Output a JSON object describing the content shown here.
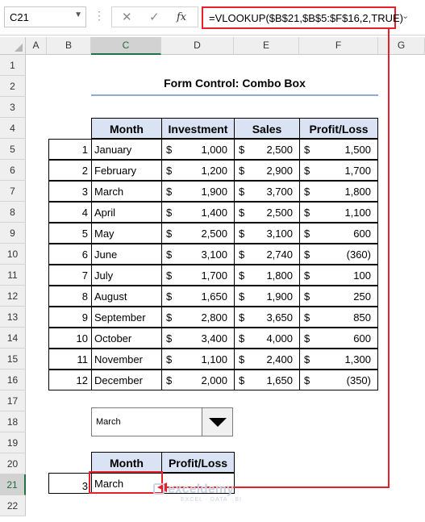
{
  "formula_bar": {
    "name_box": "C21",
    "cancel_icon": "✕",
    "enter_icon": "✓",
    "function_icon": "fx",
    "formula": "=VLOOKUP($B$21,$B$5:$F$16,2,TRUE)"
  },
  "columns": [
    "A",
    "B",
    "C",
    "D",
    "E",
    "F",
    "G"
  ],
  "rows": [
    "1",
    "2",
    "3",
    "4",
    "5",
    "6",
    "7",
    "8",
    "9",
    "10",
    "11",
    "12",
    "13",
    "14",
    "15",
    "16",
    "17",
    "18",
    "19",
    "20",
    "21",
    "22"
  ],
  "title": "Form Control: Combo Box",
  "table": {
    "headers": [
      "Month",
      "Investment",
      "Sales",
      "Profit/Loss"
    ],
    "currency": "$",
    "rows": [
      {
        "n": "1",
        "month": "January",
        "investment": "1,000",
        "sales": "2,500",
        "profit": "1,500"
      },
      {
        "n": "2",
        "month": "February",
        "investment": "1,200",
        "sales": "2,900",
        "profit": "1,700"
      },
      {
        "n": "3",
        "month": "March",
        "investment": "1,900",
        "sales": "3,700",
        "profit": "1,800"
      },
      {
        "n": "4",
        "month": "April",
        "investment": "1,400",
        "sales": "2,500",
        "profit": "1,100"
      },
      {
        "n": "5",
        "month": "May",
        "investment": "2,500",
        "sales": "3,100",
        "profit": "600"
      },
      {
        "n": "6",
        "month": "June",
        "investment": "3,100",
        "sales": "2,740",
        "profit": "(360)"
      },
      {
        "n": "7",
        "month": "July",
        "investment": "1,700",
        "sales": "1,800",
        "profit": "100"
      },
      {
        "n": "8",
        "month": "August",
        "investment": "1,650",
        "sales": "1,900",
        "profit": "250"
      },
      {
        "n": "9",
        "month": "September",
        "investment": "2,800",
        "sales": "3,650",
        "profit": "850"
      },
      {
        "n": "10",
        "month": "October",
        "investment": "3,400",
        "sales": "4,000",
        "profit": "600"
      },
      {
        "n": "11",
        "month": "November",
        "investment": "1,100",
        "sales": "2,400",
        "profit": "1,300"
      },
      {
        "n": "12",
        "month": "December",
        "investment": "2,000",
        "sales": "1,650",
        "profit": "(350)"
      }
    ]
  },
  "combo_box": {
    "selected": "March"
  },
  "result": {
    "headers": [
      "Month",
      "Profit/Loss"
    ],
    "index": "3",
    "month": "March",
    "profit": ""
  },
  "watermark": {
    "name": "exceldemy",
    "tagline": "EXCEL · DATA · BI"
  },
  "colors": {
    "header_fill": "#dae3f3",
    "accent_red": "#e8202a",
    "title_underline": "#8ea9db",
    "excel_green": "#217346"
  }
}
